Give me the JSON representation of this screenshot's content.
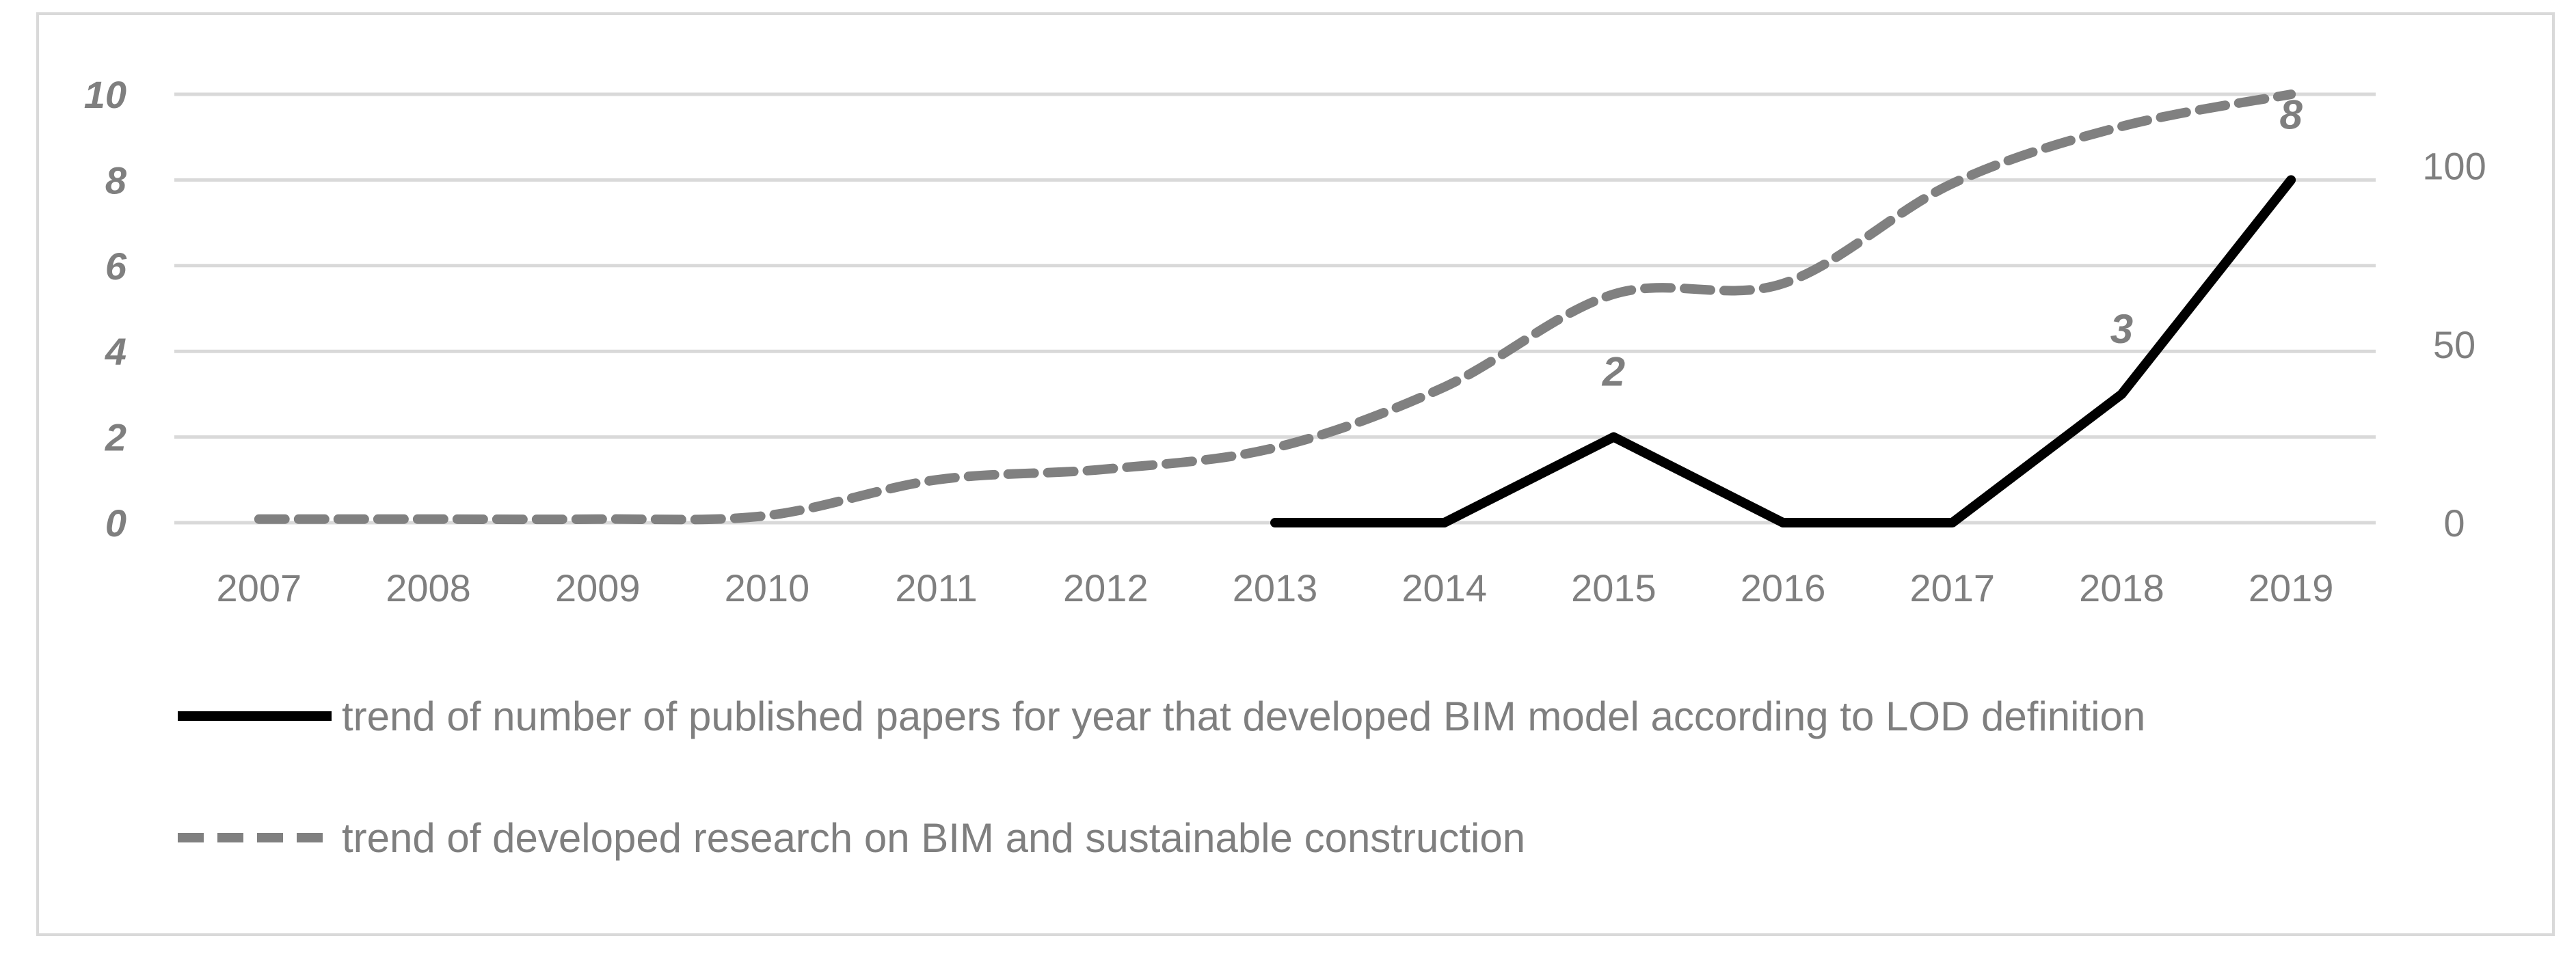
{
  "chart_data": {
    "type": "line",
    "categories": [
      "2007",
      "2008",
      "2009",
      "2010",
      "2011",
      "2012",
      "2013",
      "2014",
      "2015",
      "2016",
      "2017",
      "2018",
      "2019"
    ],
    "y_left": {
      "ylim": [
        0,
        10
      ],
      "ticks": [
        "0",
        "2",
        "4",
        "6",
        "8",
        "10"
      ]
    },
    "y_right": {
      "ylim": [
        0,
        120
      ],
      "ticks": [
        "0",
        "50",
        "100"
      ]
    },
    "grid": true,
    "legend_position": "bottom",
    "series": [
      {
        "name": "trend of number of published papers for year that developed BIM model according to LOD definition",
        "axis": "left",
        "style": "solid",
        "color": "#000000",
        "values": [
          null,
          null,
          null,
          null,
          null,
          null,
          0,
          0,
          2,
          0,
          0,
          3,
          8
        ],
        "data_labels": [
          null,
          null,
          null,
          null,
          null,
          null,
          null,
          null,
          "2",
          null,
          null,
          "3",
          "8"
        ]
      },
      {
        "name": "trend of developed research on BIM and sustainable construction",
        "axis": "right",
        "style": "dashed",
        "color": "#808080",
        "values": [
          1,
          1,
          1,
          2,
          12,
          15,
          21,
          38,
          64,
          67,
          95,
          111,
          120
        ]
      }
    ]
  }
}
